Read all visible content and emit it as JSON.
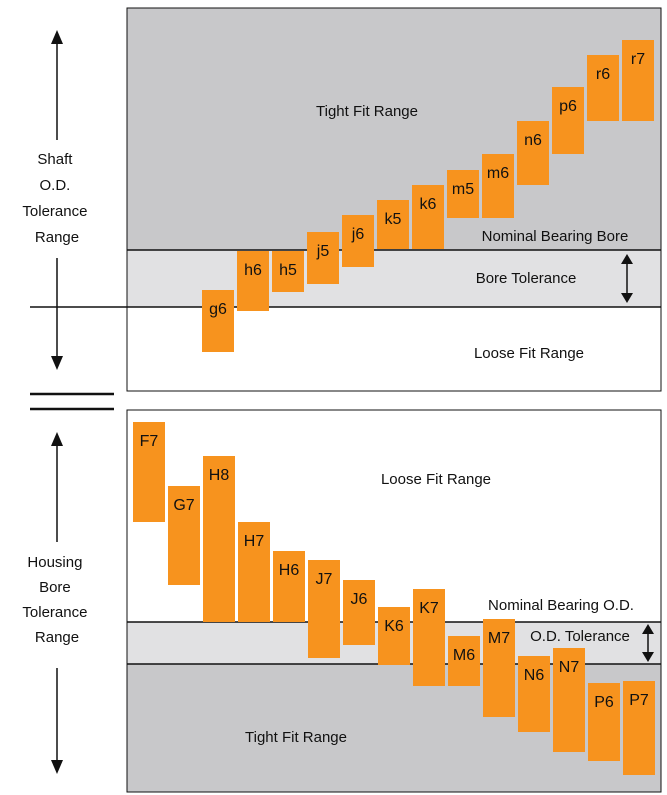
{
  "colors": {
    "tolerance_box": "#F7931E",
    "tight_zone": "#C8C8CA",
    "tolerance_band": "#E1E1E3",
    "loose_zone": "#FFFFFF",
    "line": "#111111"
  },
  "shaft_panel": {
    "side_label": [
      "Shaft",
      "O.D.",
      "Tolerance",
      "Range"
    ],
    "tight_label": "Tight Fit Range",
    "nominal_label": "Nominal Bearing Bore",
    "tolerance_label": "Bore Tolerance",
    "loose_label": "Loose Fit Range",
    "boxes": [
      "g6",
      "h6",
      "h5",
      "j5",
      "j6",
      "k5",
      "k6",
      "m5",
      "m6",
      "n6",
      "p6",
      "r6",
      "r7"
    ]
  },
  "housing_panel": {
    "side_label": [
      "Housing",
      "Bore",
      "Tolerance",
      "Range"
    ],
    "loose_label": "Loose Fit Range",
    "nominal_label": "Nominal Bearing O.D.",
    "tolerance_label": "O.D. Tolerance",
    "tight_label": "Tight Fit Range",
    "boxes": [
      "F7",
      "G7",
      "H8",
      "H7",
      "H6",
      "J7",
      "J6",
      "K6",
      "K7",
      "M6",
      "M7",
      "N6",
      "N7",
      "P6",
      "P7"
    ]
  }
}
